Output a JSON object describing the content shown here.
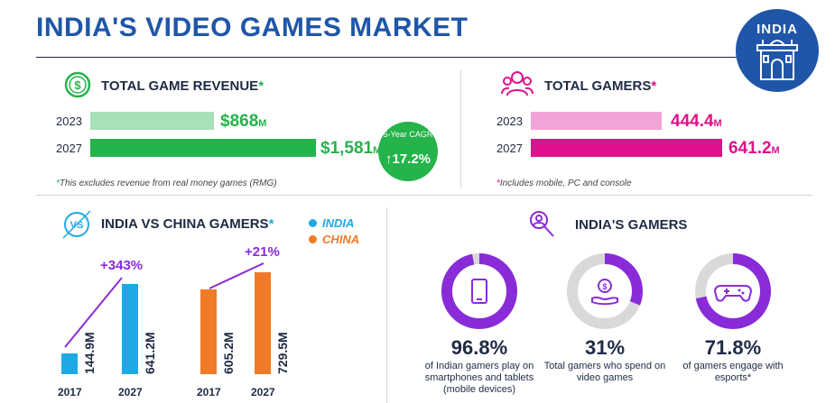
{
  "header": {
    "title": "INDIA'S VIDEO GAMES MARKET",
    "badge": "INDIA"
  },
  "revenue": {
    "title": "TOTAL GAME REVENUE",
    "star": "*",
    "rows": [
      {
        "year": "2023",
        "value": "$868",
        "unit": "M"
      },
      {
        "year": "2027",
        "value": "$1,581",
        "unit": "M"
      }
    ],
    "cagr_label": "5-Year CAGR",
    "cagr_value": "17.2%",
    "note": "This excludes revenue from real money games (RMG)"
  },
  "gamers_total": {
    "title": "TOTAL GAMERS",
    "star": "*",
    "rows": [
      {
        "year": "2023",
        "value": "444.4",
        "unit": "M"
      },
      {
        "year": "2027",
        "value": "641.2",
        "unit": "M"
      }
    ],
    "note": "Includes mobile, PC and console"
  },
  "comparison": {
    "title": "INDIA VS CHINA GAMERS",
    "star": "*",
    "legend": [
      {
        "name": "INDIA",
        "color": "#1ea9e6"
      },
      {
        "name": "CHINA",
        "color": "#f07a28"
      }
    ],
    "india": {
      "growth": "+343%",
      "bars": [
        {
          "year": "2017",
          "label": "144.9M"
        },
        {
          "year": "2027",
          "label": "641.2M"
        }
      ]
    },
    "china": {
      "growth": "+21%",
      "bars": [
        {
          "year": "2017",
          "label": "605.2M"
        },
        {
          "year": "2027",
          "label": "729.5M"
        }
      ]
    }
  },
  "indias_gamers": {
    "title": "INDIA'S GAMERS",
    "stats": [
      {
        "pct": "96.8%",
        "desc": "of Indian gamers play on smartphones and tablets (mobile devices)",
        "icon": "smartphone-icon"
      },
      {
        "pct": "31%",
        "desc": "Total gamers who spend on video games",
        "icon": "money-hand-icon"
      },
      {
        "pct": "71.8%",
        "desc": "of gamers engage with esports*",
        "icon": "gamepad-icon"
      }
    ]
  },
  "chart_data": [
    {
      "type": "bar",
      "title": "TOTAL GAME REVENUE",
      "categories": [
        "2023",
        "2027"
      ],
      "values": [
        868,
        1581
      ],
      "unit": "$M"
    },
    {
      "type": "bar",
      "title": "TOTAL GAMERS",
      "categories": [
        "2023",
        "2027"
      ],
      "values": [
        444.4,
        641.2
      ],
      "unit": "M"
    },
    {
      "type": "bar",
      "title": "INDIA VS CHINA GAMERS",
      "categories": [
        "2017",
        "2027"
      ],
      "series": [
        {
          "name": "INDIA",
          "values": [
            144.9,
            641.2
          ],
          "color": "#1ea9e6"
        },
        {
          "name": "CHINA",
          "values": [
            605.2,
            729.5
          ],
          "color": "#f07a28"
        }
      ],
      "unit": "M"
    },
    {
      "type": "pie",
      "title": "INDIA'S GAMERS",
      "values": [
        96.8,
        31,
        71.8
      ],
      "unit": "%",
      "color": "#8a2bd8",
      "track_color": "#d9d9d9"
    }
  ]
}
